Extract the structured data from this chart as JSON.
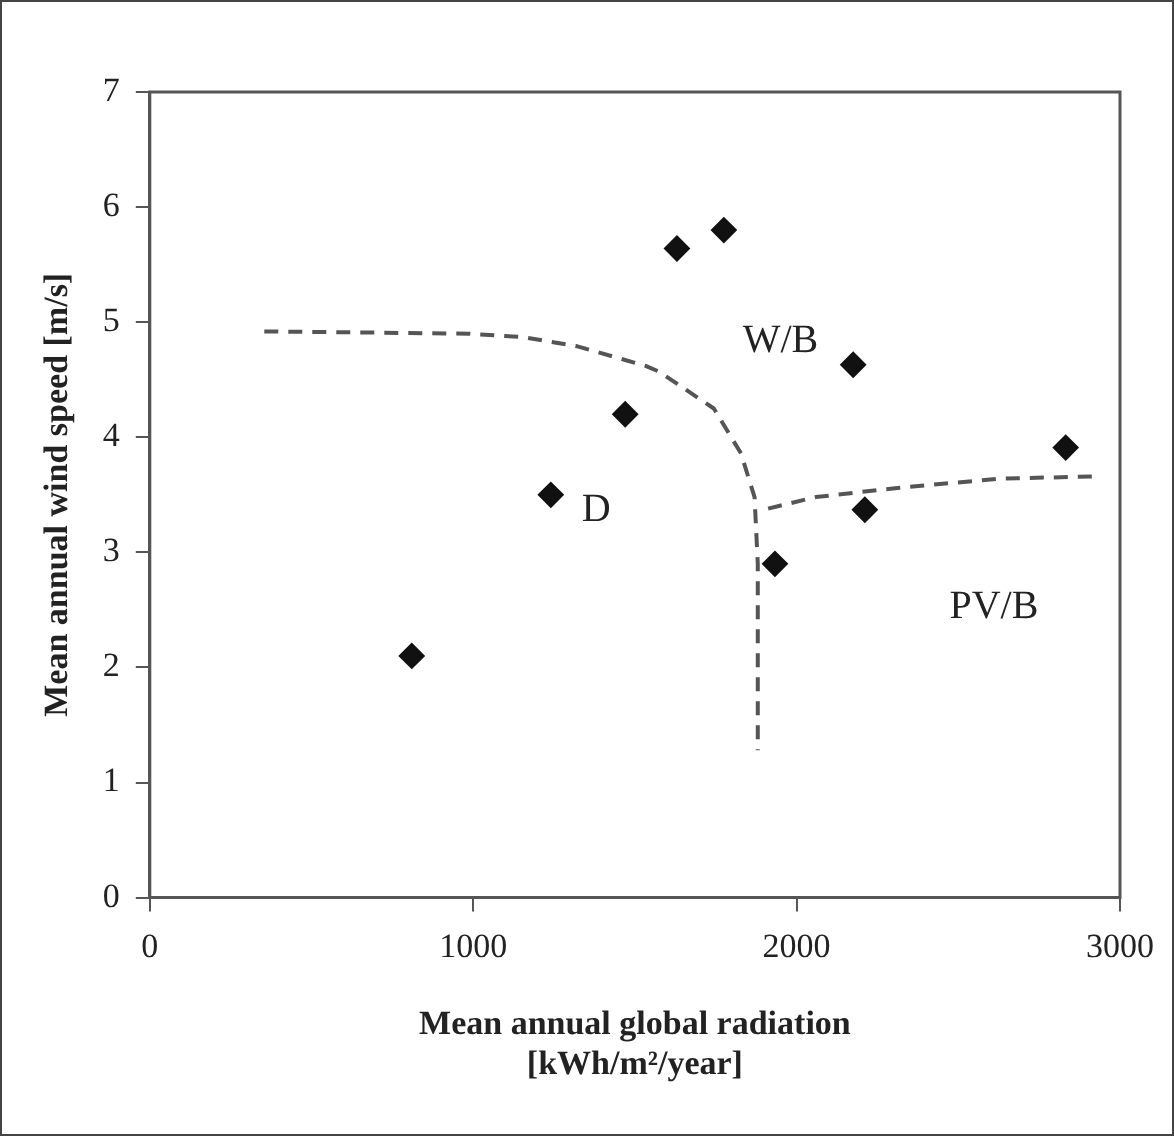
{
  "chart_data": {
    "type": "scatter",
    "xlabel": "Mean annual global radiation\n[kWh/m²/year]",
    "ylabel": "Mean annual wind speed [m/s]",
    "xlim": [
      0,
      3000
    ],
    "xticks": [
      0,
      1000,
      2000,
      3000
    ],
    "ylim": [
      0,
      7
    ],
    "yticks": [
      0,
      1,
      2,
      3,
      4,
      5,
      6,
      7
    ],
    "grid": false,
    "legend": false,
    "series": [
      {
        "color": "#111111",
        "marker": "diamond",
        "x": [
          810,
          1240,
          1470,
          1630,
          1775,
          1933,
          2175,
          2211,
          2832
        ],
        "values": [
          2.1,
          3.5,
          4.2,
          5.64,
          5.8,
          2.9,
          4.63,
          3.37,
          3.91
        ]
      },
      {
        "type": "line",
        "color": "#555555",
        "marker": "none",
        "line_style": "dashed",
        "x": [
          354,
          986,
          1154,
          1322,
          1533,
          1575,
          1744,
          1828,
          1870,
          1880,
          1880
        ],
        "values": [
          4.92,
          4.9,
          4.87,
          4.79,
          4.62,
          4.57,
          4.25,
          3.86,
          3.48,
          2.9,
          1.28
        ]
      },
      {
        "type": "line",
        "color": "#555555",
        "marker": "none",
        "line_style": "dashed",
        "x": [
          1912,
          2059,
          2312,
          2628,
          2923
        ],
        "values": [
          3.38,
          3.48,
          3.56,
          3.64,
          3.66
        ]
      }
    ],
    "annotations": [
      "D",
      "W/B",
      "PV/B"
    ]
  }
}
